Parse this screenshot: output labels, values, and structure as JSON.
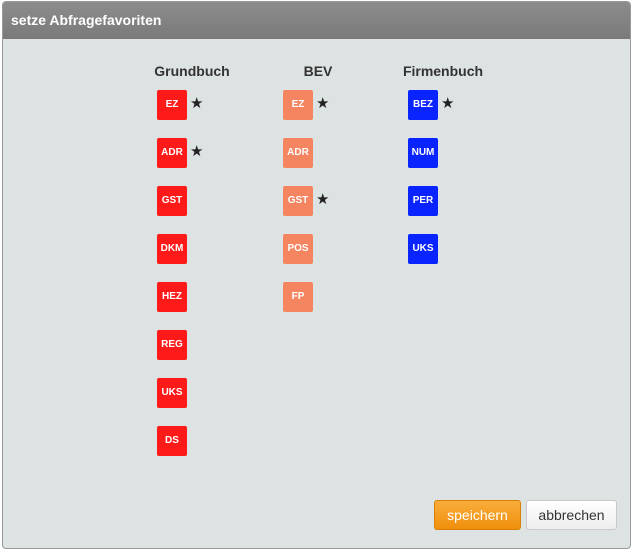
{
  "dialog": {
    "title": "setze Abfragefavoriten"
  },
  "columns": [
    {
      "header": "Grundbuch",
      "color": "#ff1a1a",
      "tiles": [
        {
          "label": "EZ",
          "favorite": true
        },
        {
          "label": "ADR",
          "favorite": true
        },
        {
          "label": "GST",
          "favorite": false
        },
        {
          "label": "DKM",
          "favorite": false
        },
        {
          "label": "HEZ",
          "favorite": false
        },
        {
          "label": "REG",
          "favorite": false
        },
        {
          "label": "UKS",
          "favorite": false
        },
        {
          "label": "DS",
          "favorite": false
        }
      ]
    },
    {
      "header": "BEV",
      "color": "#f58460",
      "tiles": [
        {
          "label": "EZ",
          "favorite": true
        },
        {
          "label": "ADR",
          "favorite": false
        },
        {
          "label": "GST",
          "favorite": true
        },
        {
          "label": "POS",
          "favorite": false
        },
        {
          "label": "FP",
          "favorite": false
        }
      ]
    },
    {
      "header": "Firmenbuch",
      "color": "#0a24ff",
      "tiles": [
        {
          "label": "BEZ",
          "favorite": true
        },
        {
          "label": "NUM",
          "favorite": false
        },
        {
          "label": "PER",
          "favorite": false
        },
        {
          "label": "UKS",
          "favorite": false
        }
      ]
    }
  ],
  "favorite_symbol": "★",
  "buttons": {
    "save_label": "speichern",
    "cancel_label": "abbrechen"
  }
}
